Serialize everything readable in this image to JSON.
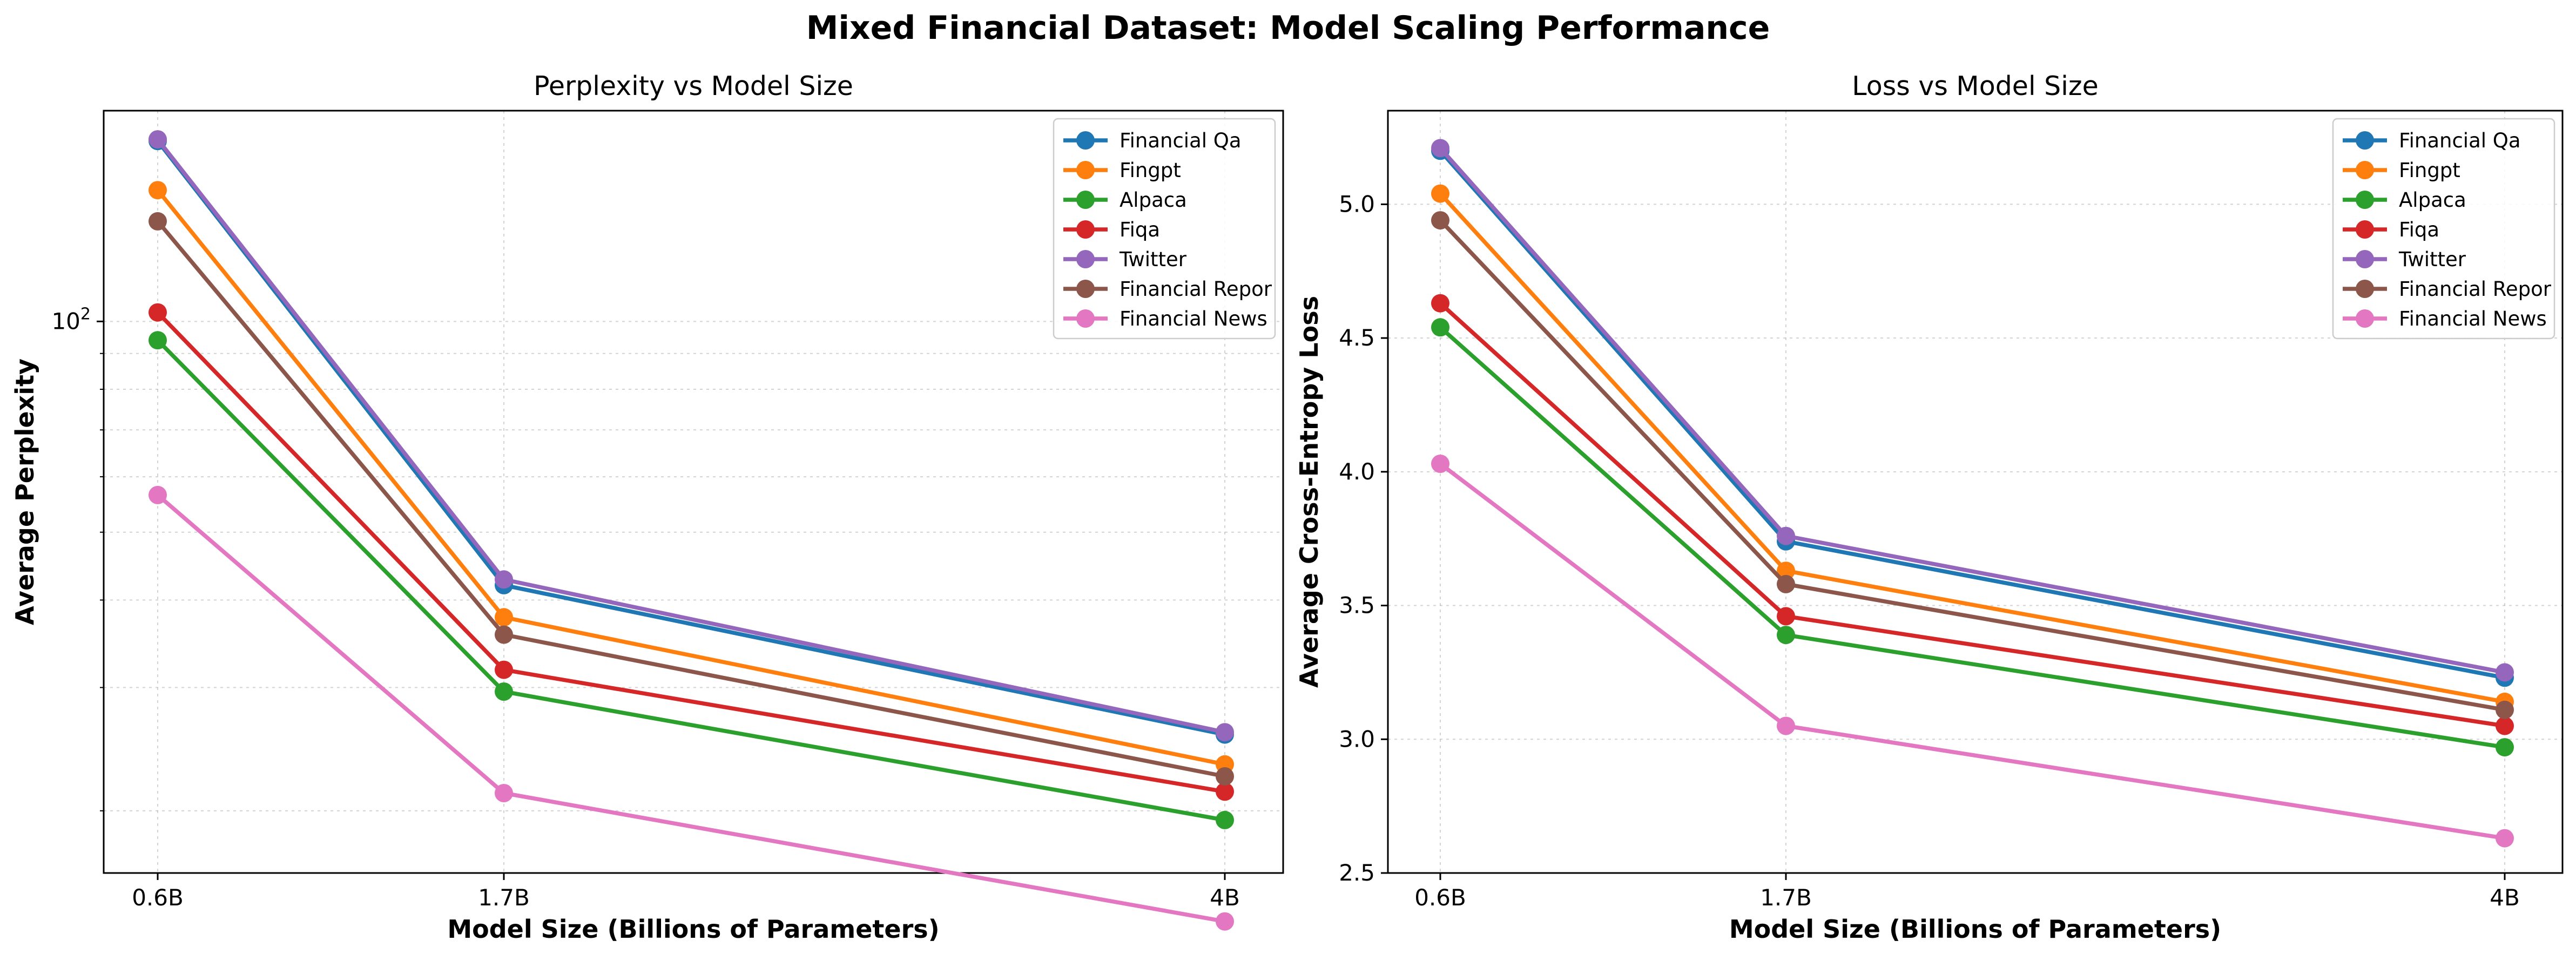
{
  "suptitle": "Mixed Financial Dataset: Model Scaling Performance",
  "chart_data": [
    {
      "type": "line",
      "title": "Perplexity vs Model Size",
      "xlabel": "Model Size (Billions of Parameters)",
      "ylabel": "Average Perplexity",
      "yscale": "log",
      "ylim": [
        16.3,
        200
      ],
      "x": [
        "0.6B",
        "1.7B",
        "4B"
      ],
      "y_tick_labels": [
        "10^2"
      ],
      "grid": true,
      "legend": "top-right",
      "series": [
        {
          "name": "Financial Qa",
          "color": "#1f77b4",
          "values": [
            181,
            42,
            25.7
          ]
        },
        {
          "name": "Fingpt",
          "color": "#ff7f0e",
          "values": [
            154,
            37.8,
            23.3
          ]
        },
        {
          "name": "Alpaca",
          "color": "#2ca02c",
          "values": [
            94,
            29.6,
            19.4
          ]
        },
        {
          "name": "Fiqa",
          "color": "#d62728",
          "values": [
            103,
            31.8,
            21.3
          ]
        },
        {
          "name": "Twitter",
          "color": "#9467bd",
          "values": [
            182,
            42.8,
            25.9
          ]
        },
        {
          "name": "Financial Repor",
          "color": "#8c564b",
          "values": [
            139,
            35.7,
            22.4
          ]
        },
        {
          "name": "Financial News",
          "color": "#e377c2",
          "values": [
            56.5,
            21.2,
            13.9
          ]
        }
      ]
    },
    {
      "type": "line",
      "title": "Loss vs Model Size",
      "xlabel": "Model Size (Billions of Parameters)",
      "ylabel": "Average Cross-Entropy Loss",
      "ylim": [
        2.5,
        5.35
      ],
      "y_ticks": [
        2.5,
        3.0,
        3.5,
        4.0,
        4.5,
        5.0
      ],
      "y_tick_labels": [
        "2.5",
        "3.0",
        "3.5",
        "4.0",
        "4.5",
        "5.0"
      ],
      "x": [
        "0.6B",
        "1.7B",
        "4B"
      ],
      "grid": true,
      "legend": "top-right",
      "series": [
        {
          "name": "Financial Qa",
          "color": "#1f77b4",
          "values": [
            5.2,
            3.74,
            3.23
          ]
        },
        {
          "name": "Fingpt",
          "color": "#ff7f0e",
          "values": [
            5.04,
            3.63,
            3.14
          ]
        },
        {
          "name": "Alpaca",
          "color": "#2ca02c",
          "values": [
            4.54,
            3.39,
            2.97
          ]
        },
        {
          "name": "Fiqa",
          "color": "#d62728",
          "values": [
            4.63,
            3.46,
            3.05
          ]
        },
        {
          "name": "Twitter",
          "color": "#9467bd",
          "values": [
            5.21,
            3.76,
            3.25
          ]
        },
        {
          "name": "Financial Repor",
          "color": "#8c564b",
          "values": [
            4.94,
            3.58,
            3.11
          ]
        },
        {
          "name": "Financial News",
          "color": "#e377c2",
          "values": [
            4.03,
            3.05,
            2.63
          ]
        }
      ]
    }
  ]
}
